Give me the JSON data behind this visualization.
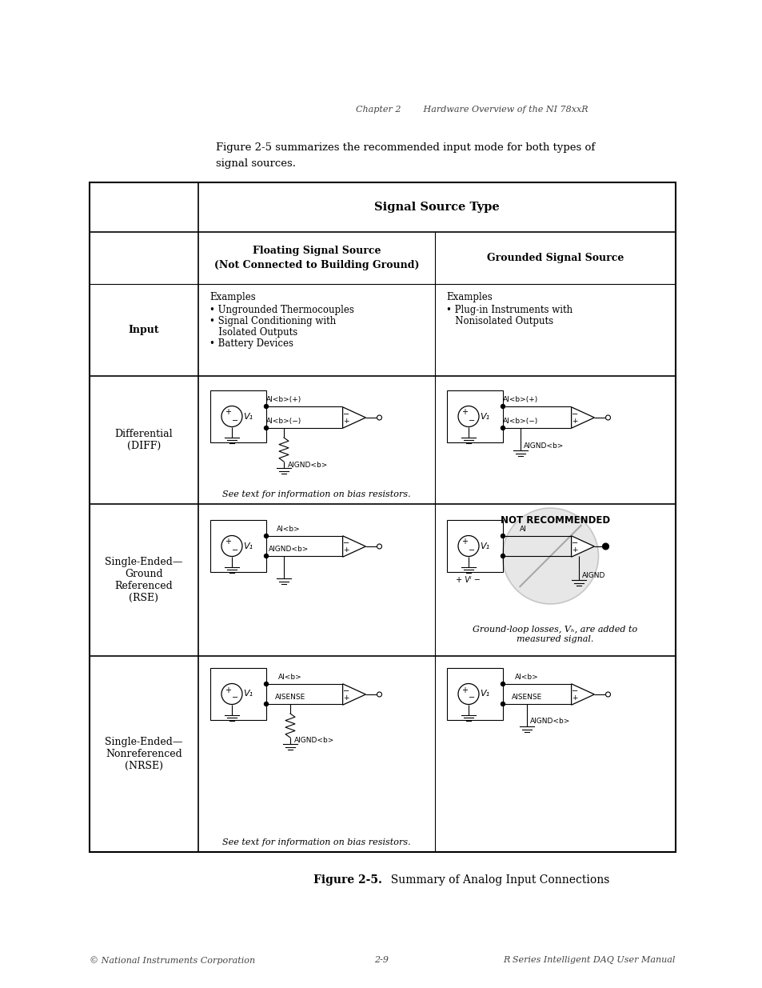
{
  "page_header": "Chapter 2        Hardware Overview of the NI 78xxR",
  "intro_text_line1": "Figure 2-5 summarizes the recommended input mode for both types of",
  "intro_text_line2": "signal sources.",
  "table_title": "Signal Source Type",
  "col1_header_line1": "Floating Signal Source",
  "col1_header_line2": "(Not Connected to Building Ground)",
  "col2_header": "Grounded Signal Source",
  "input_col1_line1": "Examples",
  "input_col1_bullets": [
    "• Ungrounded Thermocouples",
    "• Signal Conditioning with",
    "   Isolated Outputs",
    "• Battery Devices"
  ],
  "input_col2_line1": "Examples",
  "input_col2_bullets": [
    "• Plug-in Instruments with",
    "   Nonisolated Outputs"
  ],
  "diff_note": "See text for information on bias resistors.",
  "not_recommended": "NOT RECOMMENDED",
  "rse_ground_note_line1": "Ground-loop losses, V",
  "rse_ground_note_line2": ", are added to",
  "rse_ground_note_line3": "measured signal.",
  "nrse_note": "See text for information on bias resistors.",
  "figure_bold": "Figure 2-5.",
  "figure_rest": "  Summary of Analog Input Connections",
  "footer_left": "© National Instruments Corporation",
  "footer_center": "2-9",
  "footer_right": "R Series Intelligent DAQ User Manual"
}
